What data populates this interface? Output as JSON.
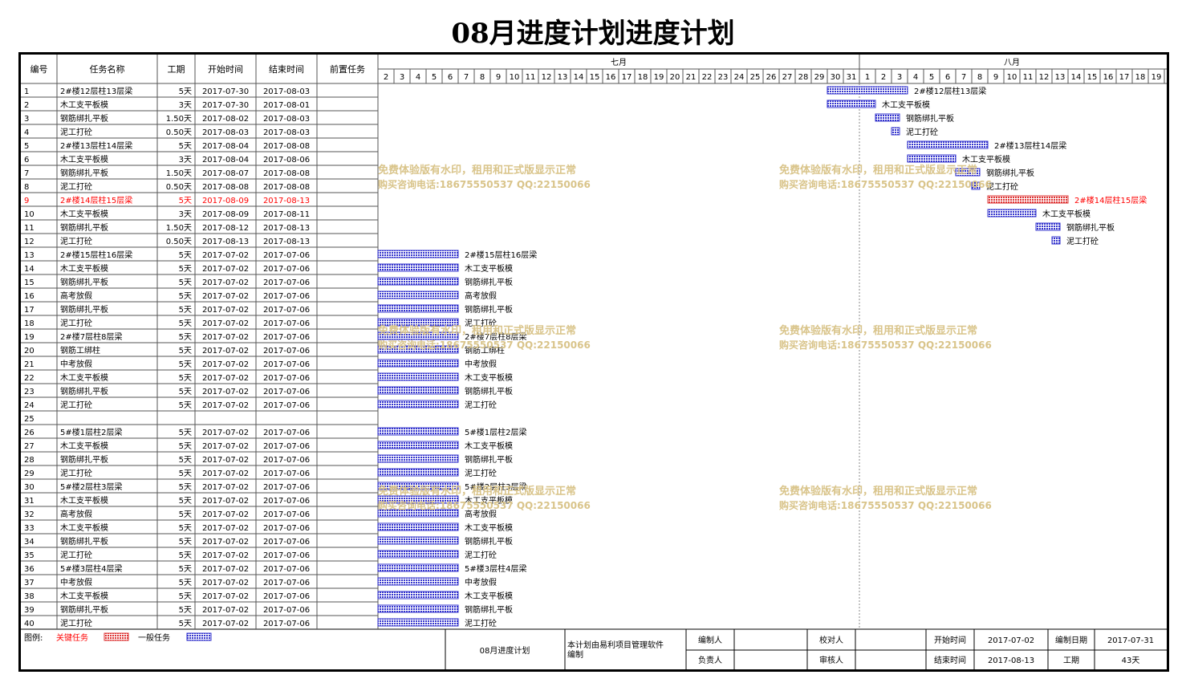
{
  "title": "08月进度计划进度计划",
  "columns": {
    "id": "编号",
    "name": "任务名称",
    "duration": "工期",
    "start": "开始时间",
    "end": "结束时间",
    "pred": "前置任务"
  },
  "months": [
    {
      "label": "七月",
      "days": [
        "2",
        "3",
        "4",
        "5",
        "6",
        "7",
        "8",
        "9",
        "10",
        "11",
        "12",
        "13",
        "14",
        "15",
        "16",
        "17",
        "18",
        "19",
        "20",
        "21",
        "22",
        "23",
        "24",
        "25",
        "26",
        "27",
        "28",
        "29",
        "30",
        "31"
      ]
    },
    {
      "label": "八月",
      "days": [
        "1",
        "2",
        "3",
        "4",
        "5",
        "6",
        "7",
        "8",
        "9",
        "10",
        "11",
        "12",
        "13",
        "14",
        "15",
        "16",
        "17",
        "18",
        "19"
      ]
    }
  ],
  "tasks": [
    {
      "id": "1",
      "name": "2#楼12层柱13层梁",
      "duration": "5天",
      "start": "2017-07-30",
      "end": "2017-08-03",
      "critical": false
    },
    {
      "id": "2",
      "name": "木工支平板模",
      "duration": "3天",
      "start": "2017-07-30",
      "end": "2017-08-01",
      "critical": false
    },
    {
      "id": "3",
      "name": "钢筋绑扎平板",
      "duration": "1.50天",
      "start": "2017-08-02",
      "end": "2017-08-03",
      "critical": false
    },
    {
      "id": "4",
      "name": "泥工打砼",
      "duration": "0.50天",
      "start": "2017-08-03",
      "end": "2017-08-03",
      "critical": false
    },
    {
      "id": "5",
      "name": "2#楼13层柱14层梁",
      "duration": "5天",
      "start": "2017-08-04",
      "end": "2017-08-08",
      "critical": false
    },
    {
      "id": "6",
      "name": "木工支平板模",
      "duration": "3天",
      "start": "2017-08-04",
      "end": "2017-08-06",
      "critical": false
    },
    {
      "id": "7",
      "name": "钢筋绑扎平板",
      "duration": "1.50天",
      "start": "2017-08-07",
      "end": "2017-08-08",
      "critical": false
    },
    {
      "id": "8",
      "name": "泥工打砼",
      "duration": "0.50天",
      "start": "2017-08-08",
      "end": "2017-08-08",
      "critical": false
    },
    {
      "id": "9",
      "name": "2#楼14层柱15层梁",
      "duration": "5天",
      "start": "2017-08-09",
      "end": "2017-08-13",
      "critical": true
    },
    {
      "id": "10",
      "name": "木工支平板模",
      "duration": "3天",
      "start": "2017-08-09",
      "end": "2017-08-11",
      "critical": false
    },
    {
      "id": "11",
      "name": "钢筋绑扎平板",
      "duration": "1.50天",
      "start": "2017-08-12",
      "end": "2017-08-13",
      "critical": false
    },
    {
      "id": "12",
      "name": "泥工打砼",
      "duration": "0.50天",
      "start": "2017-08-13",
      "end": "2017-08-13",
      "critical": false
    },
    {
      "id": "13",
      "name": "2#楼15层柱16层梁",
      "duration": "5天",
      "start": "2017-07-02",
      "end": "2017-07-06",
      "critical": false
    },
    {
      "id": "14",
      "name": "木工支平板模",
      "duration": "5天",
      "start": "2017-07-02",
      "end": "2017-07-06",
      "critical": false
    },
    {
      "id": "15",
      "name": "钢筋绑扎平板",
      "duration": "5天",
      "start": "2017-07-02",
      "end": "2017-07-06",
      "critical": false
    },
    {
      "id": "16",
      "name": "高考放假",
      "duration": "5天",
      "start": "2017-07-02",
      "end": "2017-07-06",
      "critical": false
    },
    {
      "id": "17",
      "name": "钢筋绑扎平板",
      "duration": "5天",
      "start": "2017-07-02",
      "end": "2017-07-06",
      "critical": false
    },
    {
      "id": "18",
      "name": "泥工打砼",
      "duration": "5天",
      "start": "2017-07-02",
      "end": "2017-07-06",
      "critical": false
    },
    {
      "id": "19",
      "name": "2#楼7层柱8层梁",
      "duration": "5天",
      "start": "2017-07-02",
      "end": "2017-07-06",
      "critical": false
    },
    {
      "id": "20",
      "name": "钢筋工绑柱",
      "duration": "5天",
      "start": "2017-07-02",
      "end": "2017-07-06",
      "critical": false
    },
    {
      "id": "21",
      "name": "中考放假",
      "duration": "5天",
      "start": "2017-07-02",
      "end": "2017-07-06",
      "critical": false
    },
    {
      "id": "22",
      "name": "木工支平板模",
      "duration": "5天",
      "start": "2017-07-02",
      "end": "2017-07-06",
      "critical": false
    },
    {
      "id": "23",
      "name": "钢筋绑扎平板",
      "duration": "5天",
      "start": "2017-07-02",
      "end": "2017-07-06",
      "critical": false
    },
    {
      "id": "24",
      "name": "泥工打砼",
      "duration": "5天",
      "start": "2017-07-02",
      "end": "2017-07-06",
      "critical": false
    },
    {
      "id": "25",
      "name": "",
      "duration": "",
      "start": "",
      "end": "",
      "critical": false
    },
    {
      "id": "26",
      "name": "5#楼1层柱2层梁",
      "duration": "5天",
      "start": "2017-07-02",
      "end": "2017-07-06",
      "critical": false
    },
    {
      "id": "27",
      "name": "木工支平板模",
      "duration": "5天",
      "start": "2017-07-02",
      "end": "2017-07-06",
      "critical": false
    },
    {
      "id": "28",
      "name": "钢筋绑扎平板",
      "duration": "5天",
      "start": "2017-07-02",
      "end": "2017-07-06",
      "critical": false
    },
    {
      "id": "29",
      "name": "泥工打砼",
      "duration": "5天",
      "start": "2017-07-02",
      "end": "2017-07-06",
      "critical": false
    },
    {
      "id": "30",
      "name": "5#楼2层柱3层梁",
      "duration": "5天",
      "start": "2017-07-02",
      "end": "2017-07-06",
      "critical": false
    },
    {
      "id": "31",
      "name": "木工支平板模",
      "duration": "5天",
      "start": "2017-07-02",
      "end": "2017-07-06",
      "critical": false
    },
    {
      "id": "32",
      "name": "高考放假",
      "duration": "5天",
      "start": "2017-07-02",
      "end": "2017-07-06",
      "critical": false
    },
    {
      "id": "33",
      "name": "木工支平板模",
      "duration": "5天",
      "start": "2017-07-02",
      "end": "2017-07-06",
      "critical": false
    },
    {
      "id": "34",
      "name": "钢筋绑扎平板",
      "duration": "5天",
      "start": "2017-07-02",
      "end": "2017-07-06",
      "critical": false
    },
    {
      "id": "35",
      "name": "泥工打砼",
      "duration": "5天",
      "start": "2017-07-02",
      "end": "2017-07-06",
      "critical": false
    },
    {
      "id": "36",
      "name": "5#楼3层柱4层梁",
      "duration": "5天",
      "start": "2017-07-02",
      "end": "2017-07-06",
      "critical": false
    },
    {
      "id": "37",
      "name": "中考放假",
      "duration": "5天",
      "start": "2017-07-02",
      "end": "2017-07-06",
      "critical": false
    },
    {
      "id": "38",
      "name": "木工支平板模",
      "duration": "5天",
      "start": "2017-07-02",
      "end": "2017-07-06",
      "critical": false
    },
    {
      "id": "39",
      "name": "钢筋绑扎平板",
      "duration": "5天",
      "start": "2017-07-02",
      "end": "2017-07-06",
      "critical": false
    },
    {
      "id": "40",
      "name": "泥工打砼",
      "duration": "5天",
      "start": "2017-07-02",
      "end": "2017-07-06",
      "critical": false
    }
  ],
  "watermark": {
    "line1": "免费体验版有水印，租用和正式版显示正常",
    "line2": "购买咨询电话:18675550537 QQ:22150066"
  },
  "legend": {
    "label": "图例:",
    "critical": "关键任务",
    "normal": "一般任务"
  },
  "footer": {
    "plan_name": "08月进度计划",
    "note": "本计划由易利项目管理软件编制",
    "editor_label": "编制人",
    "editor": "",
    "checker_label": "校对人",
    "checker": "",
    "owner_label": "负责人",
    "owner": "",
    "reviewer_label": "审核人",
    "reviewer": "",
    "start_label": "开始时间",
    "start": "2017-07-02",
    "end_label": "结束时间",
    "end": "2017-08-13",
    "date_label": "编制日期",
    "date": "2017-07-31",
    "period_label": "工期",
    "period": "43天"
  },
  "colors": {
    "normal_bar": "#3333cc",
    "critical_bar": "#dd3333",
    "critical_text": "#ff0000",
    "watermark": "#d9c48a",
    "today_line": "#888888"
  }
}
